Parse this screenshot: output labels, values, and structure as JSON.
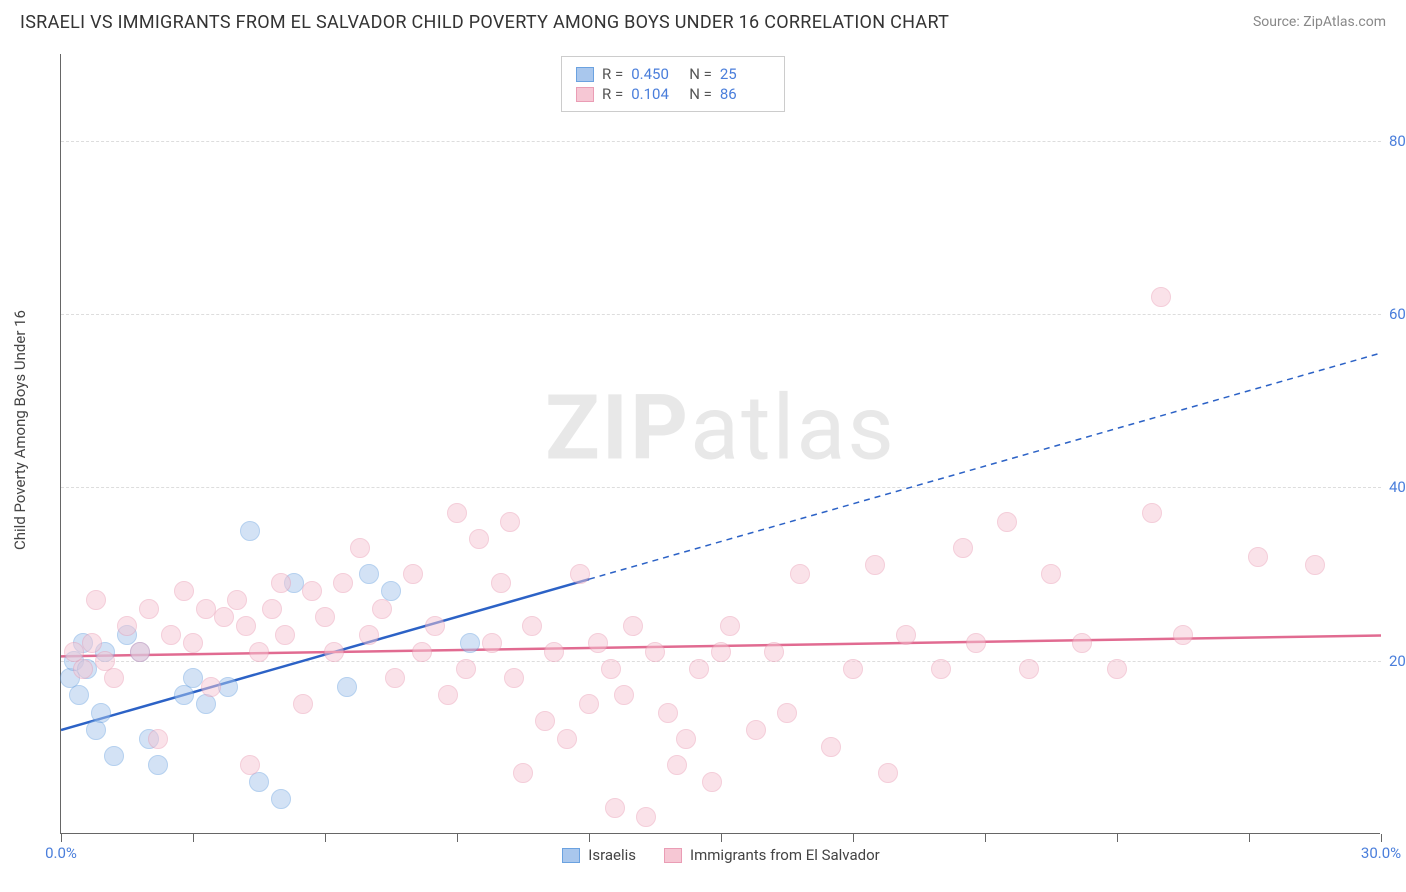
{
  "title": "ISRAELI VS IMMIGRANTS FROM EL SALVADOR CHILD POVERTY AMONG BOYS UNDER 16 CORRELATION CHART",
  "source_text": "Source: ZipAtlas.com",
  "y_axis_label": "Child Poverty Among Boys Under 16",
  "watermark_bold": "ZIP",
  "watermark_rest": "atlas",
  "chart": {
    "type": "scatter",
    "background_color": "#ffffff",
    "grid_color": "#dddddd",
    "grid_dash": "4 4",
    "axis_color": "#666666",
    "label_color": "#4a7edb",
    "text_color": "#444444",
    "tick_fontsize": 15,
    "title_fontsize": 18,
    "xlim": [
      0,
      30
    ],
    "ylim": [
      0,
      90
    ],
    "x_ticks": [
      0,
      3,
      6,
      9,
      12,
      15,
      18,
      21,
      24,
      27,
      30
    ],
    "x_tick_labels": {
      "0": "0.0%",
      "30": "30.0%"
    },
    "y_ticks": [
      20,
      40,
      60,
      80
    ],
    "y_tick_labels": {
      "20": "20.0%",
      "40": "40.0%",
      "60": "60.0%",
      "80": "80.0%"
    },
    "marker_radius": 10,
    "marker_opacity": 0.5,
    "marker_stroke_width": 1.2
  },
  "series": [
    {
      "id": "israelis",
      "label": "Israelis",
      "fill_color": "#a9c7ed",
      "stroke_color": "#6ba2e0",
      "line_color": "#2c62c6",
      "R": "0.450",
      "N": "25",
      "trend": {
        "y_intercept": 12,
        "slope": 1.45,
        "solid_until_x": 12
      },
      "points": [
        [
          0.2,
          18
        ],
        [
          0.3,
          20
        ],
        [
          0.4,
          16
        ],
        [
          0.5,
          22
        ],
        [
          0.6,
          19
        ],
        [
          0.8,
          12
        ],
        [
          0.9,
          14
        ],
        [
          1.0,
          21
        ],
        [
          1.2,
          9
        ],
        [
          1.5,
          23
        ],
        [
          1.8,
          21
        ],
        [
          2.0,
          11
        ],
        [
          2.2,
          8
        ],
        [
          2.8,
          16
        ],
        [
          3.0,
          18
        ],
        [
          3.3,
          15
        ],
        [
          3.8,
          17
        ],
        [
          4.3,
          35
        ],
        [
          4.5,
          6
        ],
        [
          5.0,
          4
        ],
        [
          5.3,
          29
        ],
        [
          6.5,
          17
        ],
        [
          7.0,
          30
        ],
        [
          7.5,
          28
        ],
        [
          9.3,
          22
        ]
      ]
    },
    {
      "id": "el_salvador",
      "label": "Immigrants from El Salvador",
      "fill_color": "#f6c7d4",
      "stroke_color": "#ea9db5",
      "line_color": "#e16b91",
      "R": "0.104",
      "N": "86",
      "trend": {
        "y_intercept": 20.5,
        "slope": 0.08,
        "solid_until_x": 30
      },
      "points": [
        [
          0.3,
          21
        ],
        [
          0.5,
          19
        ],
        [
          0.7,
          22
        ],
        [
          0.8,
          27
        ],
        [
          1.0,
          20
        ],
        [
          1.2,
          18
        ],
        [
          1.5,
          24
        ],
        [
          1.8,
          21
        ],
        [
          2.0,
          26
        ],
        [
          2.2,
          11
        ],
        [
          2.5,
          23
        ],
        [
          2.8,
          28
        ],
        [
          3.0,
          22
        ],
        [
          3.3,
          26
        ],
        [
          3.4,
          17
        ],
        [
          3.7,
          25
        ],
        [
          4.0,
          27
        ],
        [
          4.2,
          24
        ],
        [
          4.3,
          8
        ],
        [
          4.5,
          21
        ],
        [
          4.8,
          26
        ],
        [
          5.0,
          29
        ],
        [
          5.1,
          23
        ],
        [
          5.5,
          15
        ],
        [
          5.7,
          28
        ],
        [
          6.0,
          25
        ],
        [
          6.2,
          21
        ],
        [
          6.4,
          29
        ],
        [
          6.8,
          33
        ],
        [
          7.0,
          23
        ],
        [
          7.3,
          26
        ],
        [
          7.6,
          18
        ],
        [
          8.0,
          30
        ],
        [
          8.2,
          21
        ],
        [
          8.5,
          24
        ],
        [
          8.8,
          16
        ],
        [
          9.0,
          37
        ],
        [
          9.2,
          19
        ],
        [
          9.5,
          34
        ],
        [
          9.8,
          22
        ],
        [
          10.0,
          29
        ],
        [
          10.2,
          36
        ],
        [
          10.3,
          18
        ],
        [
          10.5,
          7
        ],
        [
          10.7,
          24
        ],
        [
          11.0,
          13
        ],
        [
          11.2,
          21
        ],
        [
          11.5,
          11
        ],
        [
          11.8,
          30
        ],
        [
          12.0,
          15
        ],
        [
          12.2,
          22
        ],
        [
          12.5,
          19
        ],
        [
          12.6,
          3
        ],
        [
          12.8,
          16
        ],
        [
          13.0,
          24
        ],
        [
          13.3,
          2
        ],
        [
          13.5,
          21
        ],
        [
          13.8,
          14
        ],
        [
          14.0,
          8
        ],
        [
          14.2,
          11
        ],
        [
          14.5,
          19
        ],
        [
          14.8,
          6
        ],
        [
          15.0,
          21
        ],
        [
          15.2,
          24
        ],
        [
          15.8,
          12
        ],
        [
          16.2,
          21
        ],
        [
          16.5,
          14
        ],
        [
          16.8,
          30
        ],
        [
          17.5,
          10
        ],
        [
          18.0,
          19
        ],
        [
          18.5,
          31
        ],
        [
          18.8,
          7
        ],
        [
          19.2,
          23
        ],
        [
          20.0,
          19
        ],
        [
          20.5,
          33
        ],
        [
          20.8,
          22
        ],
        [
          21.5,
          36
        ],
        [
          22.0,
          19
        ],
        [
          22.5,
          30
        ],
        [
          23.2,
          22
        ],
        [
          24.0,
          19
        ],
        [
          24.8,
          37
        ],
        [
          25.0,
          62
        ],
        [
          25.5,
          23
        ],
        [
          27.2,
          32
        ],
        [
          28.5,
          31
        ]
      ]
    }
  ],
  "stat_labels": {
    "R": "R =",
    "N": "N ="
  },
  "bottom_legend_order": [
    "israelis",
    "el_salvador"
  ]
}
